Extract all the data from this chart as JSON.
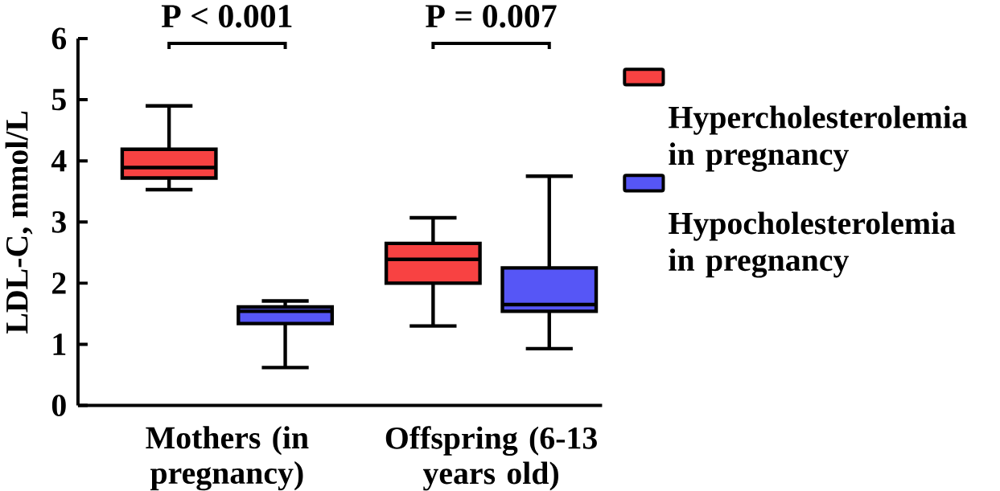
{
  "chart_data": {
    "type": "box",
    "ylabel": "LDL-C, mmol/L",
    "categories": [
      "Mothers (in pregnancy)",
      "Offspring (6-13 years old)"
    ],
    "series": [
      {
        "name": "Hypercholesterolemia in pregnancy",
        "color": "#f84242",
        "boxes": [
          {
            "low": 3.53,
            "q1": 3.72,
            "median": 3.89,
            "q3": 4.19,
            "high": 4.9
          },
          {
            "low": 1.3,
            "q1": 2.0,
            "median": 2.39,
            "q3": 2.65,
            "high": 3.07
          }
        ]
      },
      {
        "name": "Hypocholesterolemia in pregnancy",
        "color": "#5656f6",
        "boxes": [
          {
            "low": 0.62,
            "q1": 1.34,
            "median": 1.54,
            "q3": 1.61,
            "high": 1.71
          },
          {
            "low": 0.93,
            "q1": 1.54,
            "median": 1.65,
            "q3": 2.25,
            "high": 3.75
          }
        ]
      }
    ],
    "ylim": [
      0,
      6
    ],
    "yticks": [
      0,
      1,
      2,
      3,
      4,
      5,
      6
    ],
    "grid": false,
    "legend": "right",
    "annotations": [
      "P < 0.001",
      "P = 0.007"
    ]
  }
}
